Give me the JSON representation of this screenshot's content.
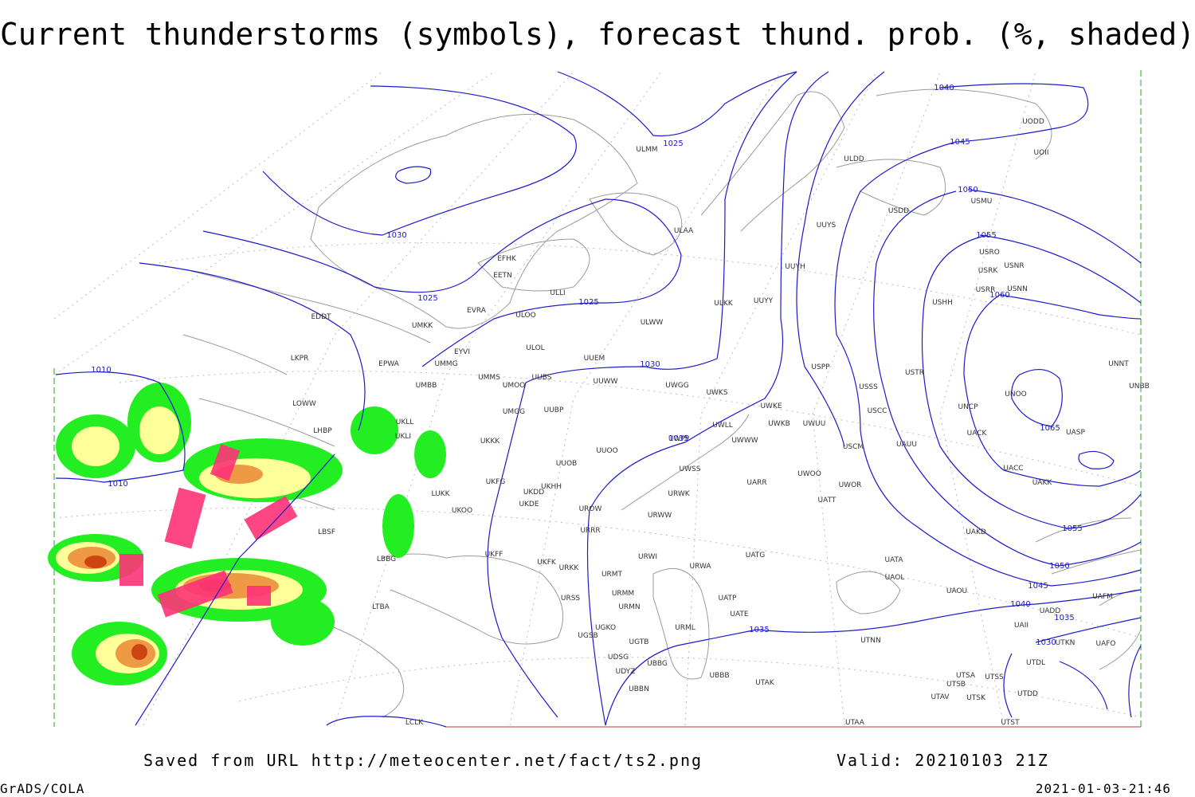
{
  "title": "Current thunderstorms (symbols), forecast thund. prob. (%, shaded)",
  "isobar_labels": [
    1040,
    1045,
    1025,
    1050,
    1055,
    1030,
    1025,
    1025,
    1060,
    1010,
    1030,
    1065,
    1035,
    1010,
    1055,
    1050,
    1045,
    1040,
    1035,
    1035,
    1030
  ],
  "stations": [
    "ULMM",
    "ULDD",
    "UODD",
    "UOII",
    "ULAA",
    "UUYS",
    "USDD",
    "USMU",
    "USRO",
    "USRK",
    "USNR",
    "USRR",
    "USNN",
    "EFHK",
    "EETN",
    "ULLI",
    "USHH",
    "UUYH",
    "EVRA",
    "ULOO",
    "ULKK",
    "UUYY",
    "ULWW",
    "EDDT",
    "UMKK",
    "ULOL",
    "EYVI",
    "UUEM",
    "LKPR",
    "UMMG",
    "EPWA",
    "UUWW",
    "UMMS",
    "UMOO",
    "UUBS",
    "USPP",
    "USTR",
    "UNNT",
    "UNBB",
    "UMBB",
    "UWGG",
    "UWKS",
    "USSS",
    "UNOO",
    "LOWW",
    "UWKE",
    "UMGG",
    "UUBP",
    "USCC",
    "UNCP",
    "UKLL",
    "LHBP",
    "UKLI",
    "UWLL",
    "UWKB",
    "UWUU",
    "UACK",
    "UASP",
    "UKKK",
    "UUOO",
    "UWPP",
    "UWWW",
    "USCM",
    "UAUU",
    "UUOB",
    "UACC",
    "UKHH",
    "UKFG",
    "UWSS",
    "UWOO",
    "UWOR",
    "UARR",
    "UAKK",
    "LUKK",
    "UKDD",
    "UKDE",
    "UKOO",
    "UROW",
    "URWK",
    "UATT",
    "URWW",
    "LBSF",
    "URRR",
    "UAKD",
    "UKFF",
    "URWI",
    "UATG",
    "UATA",
    "LBBG",
    "UKFK",
    "URKK",
    "URWA",
    "URMT",
    "UAOL",
    "URSS",
    "URMM",
    "UATP",
    "UAOU",
    "UAFM",
    "LTBA",
    "URMN",
    "UATE",
    "UADD",
    "UGKO",
    "URML",
    "UAII",
    "UGSB",
    "UGTB",
    "UTNN",
    "UTKN",
    "UAFO",
    "UDSG",
    "UBBG",
    "UDYZ",
    "UTDL",
    "UBBB",
    "UTSA",
    "UTSS",
    "UTAK",
    "UTSB",
    "UBBN",
    "UTDD",
    "UTAV",
    "UTSK",
    "LCLK",
    "UTAA",
    "UTST"
  ],
  "footer": {
    "source": "Saved from URL http://meteocenter.net/fact/ts2.png",
    "valid": "Valid: 20210103 21Z",
    "software": "GrADS/COLA",
    "timestamp": "2021-01-03-21:46"
  }
}
